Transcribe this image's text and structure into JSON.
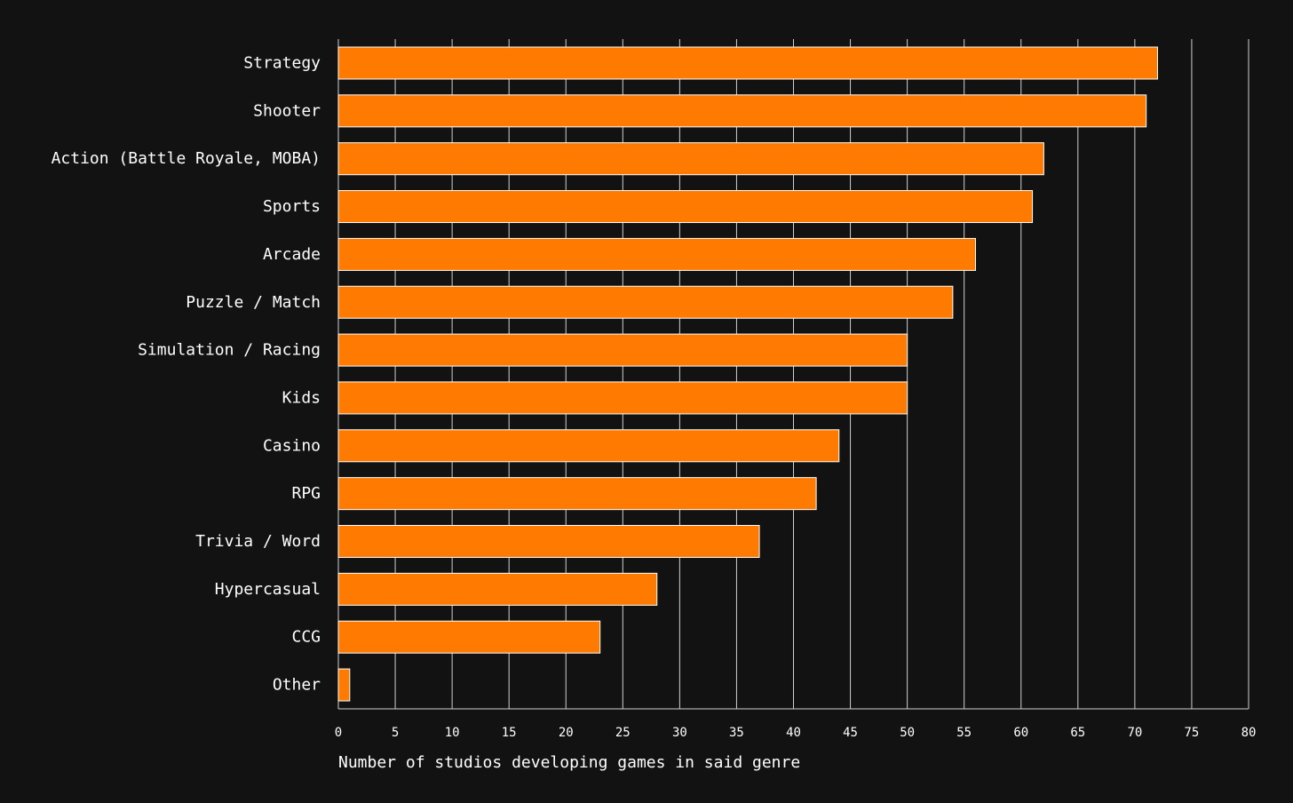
{
  "chart_data": {
    "type": "bar",
    "orientation": "horizontal",
    "categories": [
      "Strategy",
      "Shooter",
      "Action (Battle Royale, MOBA)",
      "Sports",
      "Arcade",
      "Puzzle / Match",
      "Simulation / Racing",
      "Kids",
      "Casino",
      "RPG",
      "Trivia / Word",
      "Hypercasual",
      "CCG",
      "Other"
    ],
    "values": [
      72,
      71,
      62,
      61,
      56,
      54,
      50,
      50,
      44,
      42,
      37,
      28,
      23,
      1
    ],
    "xlabel": "Number of studios developing games in said genre",
    "ylabel": "",
    "xlim": [
      0,
      80
    ],
    "xticks": [
      0,
      5,
      10,
      15,
      20,
      25,
      30,
      35,
      40,
      45,
      50,
      55,
      60,
      65,
      70,
      75,
      80
    ],
    "grid": "vertical",
    "bar_color": "#ff7a00",
    "bar_edge_color": "#ffffff",
    "grid_color": "#d0d0d0",
    "background_color": "#121212",
    "text_color": "#ffffff"
  }
}
